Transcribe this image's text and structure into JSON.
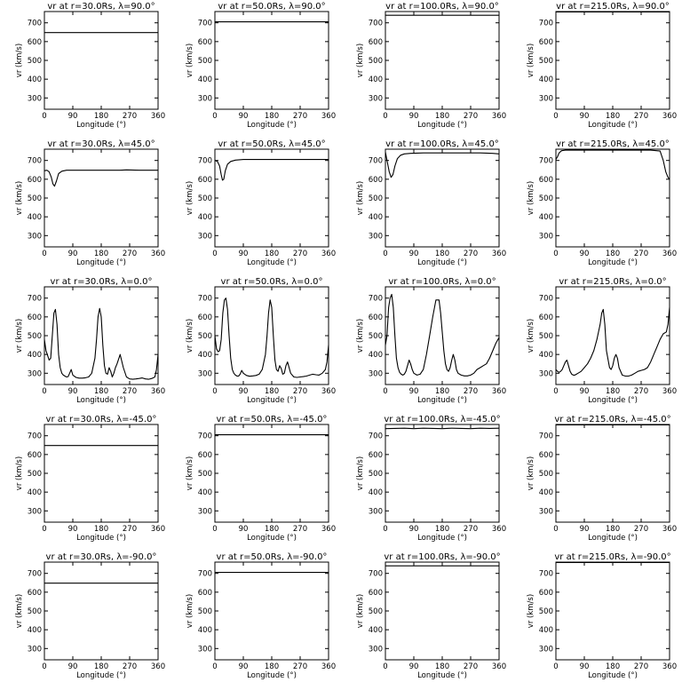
{
  "chart_data": {
    "type": "line",
    "layout": "5x4 grid",
    "xlabel": "Longitude (°)",
    "ylabel": "vr (km/s)",
    "xlim": [
      0,
      360
    ],
    "ylim": [
      240,
      760
    ],
    "xticks": [
      0,
      90,
      180,
      270,
      360
    ],
    "yticks": [
      300,
      400,
      500,
      600,
      700
    ],
    "radii": [
      "30.0Rs",
      "50.0Rs",
      "100.0Rs",
      "215.0Rs"
    ],
    "latitudes": [
      "90.0",
      "45.0",
      "0.0",
      "-45.0",
      "-90.0"
    ],
    "line_color": "#000000",
    "panels": [
      {
        "title": "vr at r=30.0Rs, λ=90.0°",
        "x": [
          0,
          360
        ],
        "y": [
          648,
          648
        ]
      },
      {
        "title": "vr at r=50.0Rs, λ=90.0°",
        "x": [
          0,
          360
        ],
        "y": [
          705,
          705
        ]
      },
      {
        "title": "vr at r=100.0Rs, λ=90.0°",
        "x": [
          0,
          360
        ],
        "y": [
          740,
          740
        ]
      },
      {
        "title": "vr at r=215.0Rs, λ=90.0°",
        "x": [
          0,
          360
        ],
        "y": [
          758,
          758
        ]
      },
      {
        "title": "vr at r=30.0Rs, λ=45.0°",
        "x": [
          0,
          8,
          15,
          22,
          27,
          32,
          38,
          45,
          55,
          70,
          100,
          150,
          200,
          240,
          260,
          300,
          360
        ],
        "y": [
          645,
          648,
          640,
          610,
          575,
          563,
          590,
          630,
          643,
          648,
          648,
          648,
          648,
          648,
          650,
          648,
          648
        ]
      },
      {
        "title": "vr at r=50.0Rs, λ=45.0°",
        "x": [
          0,
          8,
          15,
          20,
          24,
          28,
          33,
          40,
          50,
          65,
          90,
          200,
          300,
          360
        ],
        "y": [
          700,
          695,
          670,
          625,
          595,
          600,
          645,
          680,
          695,
          702,
          705,
          705,
          705,
          705
        ]
      },
      {
        "title": "vr at r=100.0Rs, λ=45.0°",
        "x": [
          0,
          5,
          12,
          18,
          24,
          30,
          38,
          48,
          60,
          80,
          120,
          180,
          240,
          300,
          340,
          360
        ],
        "y": [
          745,
          700,
          640,
          610,
          625,
          670,
          710,
          728,
          735,
          738,
          740,
          740,
          740,
          740,
          738,
          735
        ]
      },
      {
        "title": "vr at r=215.0Rs, λ=45.0°",
        "x": [
          0,
          5,
          10,
          18,
          30,
          60,
          120,
          200,
          300,
          330,
          340,
          348,
          355,
          360
        ],
        "y": [
          705,
          720,
          740,
          752,
          755,
          755,
          755,
          755,
          755,
          750,
          700,
          640,
          610,
          600
        ]
      },
      {
        "title": "vr at r=30.0Rs, λ=0.0°",
        "x": [
          0,
          5,
          10,
          15,
          20,
          25,
          30,
          35,
          40,
          45,
          50,
          55,
          60,
          65,
          70,
          75,
          80,
          85,
          90,
          100,
          110,
          120,
          130,
          140,
          150,
          160,
          165,
          170,
          175,
          180,
          185,
          190,
          195,
          200,
          205,
          210,
          215,
          220,
          225,
          230,
          240,
          250,
          260,
          270,
          280,
          290,
          300,
          310,
          320,
          330,
          340,
          350,
          355,
          360
        ],
        "y": [
          480,
          420,
          395,
          370,
          380,
          500,
          620,
          640,
          560,
          400,
          330,
          300,
          290,
          285,
          280,
          282,
          300,
          320,
          290,
          278,
          274,
          274,
          276,
          280,
          300,
          380,
          480,
          600,
          645,
          600,
          450,
          340,
          300,
          295,
          330,
          310,
          280,
          300,
          330,
          350,
          400,
          330,
          280,
          270,
          268,
          270,
          272,
          275,
          270,
          268,
          272,
          280,
          320,
          400
        ]
      },
      {
        "title": "vr at r=50.0Rs, λ=0.0°",
        "x": [
          0,
          5,
          10,
          15,
          20,
          25,
          30,
          35,
          40,
          45,
          50,
          55,
          60,
          65,
          70,
          75,
          80,
          85,
          90,
          100,
          110,
          120,
          130,
          140,
          150,
          160,
          165,
          170,
          175,
          180,
          185,
          190,
          195,
          200,
          205,
          210,
          215,
          220,
          225,
          230,
          240,
          250,
          260,
          270,
          280,
          290,
          300,
          310,
          320,
          330,
          340,
          350,
          355,
          360
        ],
        "y": [
          500,
          430,
          415,
          420,
          480,
          620,
          690,
          700,
          640,
          500,
          380,
          320,
          300,
          290,
          285,
          285,
          295,
          315,
          300,
          288,
          284,
          286,
          288,
          295,
          320,
          400,
          500,
          620,
          690,
          650,
          500,
          370,
          320,
          310,
          340,
          325,
          295,
          300,
          340,
          360,
          300,
          280,
          278,
          280,
          282,
          285,
          290,
          295,
          292,
          290,
          300,
          320,
          360,
          450
        ]
      },
      {
        "title": "vr at r=100.0Rs, λ=0.0°",
        "x": [
          0,
          5,
          10,
          15,
          20,
          25,
          30,
          35,
          40,
          45,
          50,
          55,
          60,
          65,
          70,
          75,
          80,
          85,
          90,
          100,
          110,
          120,
          130,
          140,
          150,
          160,
          170,
          175,
          180,
          185,
          190,
          195,
          200,
          205,
          210,
          215,
          220,
          225,
          230,
          240,
          250,
          260,
          270,
          280,
          290,
          300,
          310,
          320,
          330,
          340,
          350,
          360
        ],
        "y": [
          450,
          500,
          650,
          700,
          720,
          650,
          500,
          380,
          330,
          305,
          295,
          290,
          295,
          310,
          340,
          370,
          350,
          320,
          300,
          290,
          295,
          320,
          400,
          500,
          600,
          690,
          690,
          620,
          520,
          420,
          350,
          320,
          310,
          330,
          370,
          400,
          370,
          320,
          300,
          290,
          286,
          286,
          290,
          300,
          320,
          330,
          340,
          350,
          380,
          420,
          460,
          490
        ]
      },
      {
        "title": "vr at r=215.0Rs, λ=0.0°",
        "x": [
          0,
          5,
          10,
          15,
          20,
          25,
          30,
          35,
          40,
          45,
          50,
          55,
          60,
          65,
          70,
          80,
          90,
          100,
          110,
          120,
          130,
          140,
          145,
          150,
          155,
          160,
          170,
          175,
          180,
          185,
          190,
          195,
          200,
          210,
          220,
          230,
          240,
          250,
          260,
          270,
          280,
          290,
          300,
          310,
          320,
          330,
          340,
          350,
          355,
          360
        ],
        "y": [
          320,
          310,
          305,
          310,
          320,
          340,
          360,
          370,
          340,
          310,
          295,
          290,
          290,
          295,
          300,
          310,
          330,
          350,
          380,
          420,
          480,
          560,
          620,
          640,
          560,
          420,
          330,
          320,
          340,
          380,
          400,
          380,
          330,
          290,
          285,
          285,
          290,
          300,
          310,
          315,
          320,
          330,
          360,
          400,
          440,
          480,
          510,
          520,
          560,
          650
        ]
      },
      {
        "title": "vr at r=30.0Rs, λ=-45.0°",
        "x": [
          0,
          360
        ],
        "y": [
          648,
          648
        ]
      },
      {
        "title": "vr at r=50.0Rs, λ=-45.0°",
        "x": [
          0,
          360
        ],
        "y": [
          705,
          705
        ]
      },
      {
        "title": "vr at r=100.0Rs, λ=-45.0°",
        "x": [
          0,
          30,
          60,
          90,
          120,
          150,
          180,
          210,
          240,
          270,
          300,
          330,
          360
        ],
        "y": [
          738,
          739,
          740,
          738,
          740,
          739,
          738,
          740,
          739,
          738,
          740,
          739,
          740
        ]
      },
      {
        "title": "vr at r=215.0Rs, λ=-45.0°",
        "x": [
          0,
          360
        ],
        "y": [
          758,
          758
        ]
      },
      {
        "title": "vr at r=30.0Rs, λ=-90.0°",
        "x": [
          0,
          360
        ],
        "y": [
          648,
          648
        ]
      },
      {
        "title": "vr at r=50.0Rs, λ=-90.0°",
        "x": [
          0,
          360
        ],
        "y": [
          705,
          705
        ]
      },
      {
        "title": "vr at r=100.0Rs, λ=-90.0°",
        "x": [
          0,
          360
        ],
        "y": [
          740,
          740
        ]
      },
      {
        "title": "vr at r=215.0Rs, λ=-90.0°",
        "x": [
          0,
          360
        ],
        "y": [
          758,
          758
        ]
      }
    ]
  }
}
